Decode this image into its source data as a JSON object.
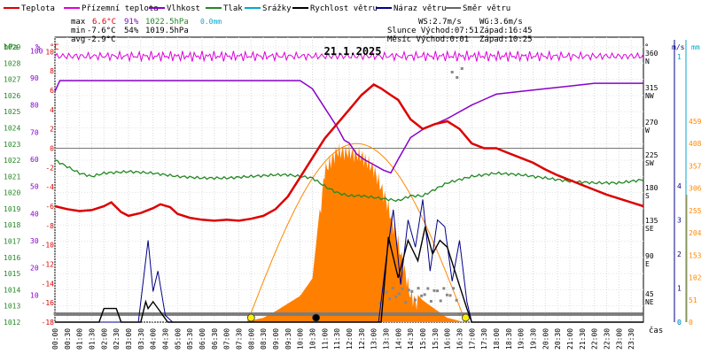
{
  "chart_data": {
    "type": "line",
    "title": "21.1.2025",
    "xlabel": "čas",
    "legend": [
      {
        "name": "Teplota",
        "color": "#dd0000"
      },
      {
        "name": "Přízemní teplota",
        "color": "#dd00dd"
      },
      {
        "name": "Vlhkost",
        "color": "#8800cc"
      },
      {
        "name": "Tlak",
        "color": "#228822"
      },
      {
        "name": "Srážky",
        "color": "#00aacc"
      },
      {
        "name": "Rychlost větru",
        "color": "#000000"
      },
      {
        "name": "Náraz větru",
        "color": "#000088"
      },
      {
        "name": "Směr větru",
        "color": "#666666"
      }
    ],
    "stats": {
      "max_label": "max",
      "max_temp": "6.6°C",
      "max_hum": "91%",
      "max_press": "1022.5hPa",
      "max_rain": "0.0mm",
      "min_label": "min",
      "min_temp": "-7.6°C",
      "min_hum": "54%",
      "min_press": "1019.5hPa",
      "avg_label": "avg",
      "avg_temp": "-2.9°C"
    },
    "wind_info": {
      "ws": "WS:2.7m/s",
      "wg": "WG:3.6m/s"
    },
    "sun_moon": {
      "sun": "Slunce Východ:07:51",
      "sun_set": "Západ:16:45",
      "moon": "Měsíc  Východ:0:01",
      "moon_set": "Západ:10:25"
    },
    "x_ticks": [
      "00:00",
      "00:30",
      "01:00",
      "01:30",
      "02:00",
      "02:30",
      "03:00",
      "03:30",
      "04:00",
      "04:30",
      "05:00",
      "05:30",
      "06:00",
      "06:30",
      "07:00",
      "07:30",
      "08:00",
      "08:30",
      "09:00",
      "09:30",
      "10:00",
      "10:30",
      "11:00",
      "11:30",
      "12:00",
      "12:30",
      "13:00",
      "13:30",
      "14:00",
      "14:30",
      "15:00",
      "15:30",
      "16:00",
      "16:30",
      "17:00",
      "17:30",
      "18:00",
      "18:30",
      "19:00",
      "19:30",
      "20:00",
      "20:30",
      "21:00",
      "21:30",
      "22:00",
      "22:30",
      "23:00",
      "23:30"
    ],
    "axes": {
      "hpa": {
        "unit": "hPa",
        "color": "#228822",
        "ticks": [
          "1012",
          "1013",
          "1014",
          "1015",
          "1016",
          "1017",
          "1018",
          "1019",
          "1020",
          "1021",
          "1022",
          "1023",
          "1024",
          "1025",
          "1026",
          "1027",
          "1028",
          "1029"
        ]
      },
      "pct": {
        "unit": "%",
        "color": "#8800cc",
        "ticks": [
          "10",
          "20",
          "30",
          "40",
          "50",
          "60",
          "70",
          "80",
          "90",
          "100"
        ]
      },
      "degc": {
        "unit": "°C",
        "color": "#dd0000",
        "ticks": [
          "-18",
          "-16",
          "-14",
          "-12",
          "-10",
          "-8",
          "-6",
          "-4",
          "-2",
          "0",
          "2",
          "4",
          "6",
          "8",
          "10"
        ]
      },
      "dir": {
        "unit": "°",
        "ticks": [
          "45 NE",
          "90 E",
          "135 SE",
          "180 S",
          "225 SW",
          "270 W",
          "315 NW",
          "360 N"
        ]
      },
      "ms": {
        "unit": "m/s",
        "color": "#000088",
        "ticks": [
          "0",
          "1",
          "2",
          "3",
          "4"
        ]
      },
      "mm": {
        "unit": "mm",
        "color": "#00aacc",
        "ticks": [
          "0",
          "1"
        ]
      },
      "rad": {
        "color": "#ff8800",
        "ticks": [
          "0",
          "51",
          "102",
          "153",
          "204",
          "255",
          "306",
          "357",
          "408",
          "459"
        ]
      }
    },
    "ylim_temp": [
      -18,
      11.5
    ],
    "temperature": {
      "x": [
        0,
        0.5,
        1,
        1.5,
        2,
        2.3,
        2.7,
        3,
        3.5,
        4,
        4.3,
        4.7,
        5,
        5.5,
        6,
        6.5,
        7,
        7.5,
        8,
        8.5,
        9,
        9.5,
        10,
        10.5,
        11,
        11.5,
        12,
        12.5,
        13,
        13.3,
        13.7,
        14,
        14.5,
        15,
        15.5,
        16,
        16.5,
        17,
        17.5,
        18,
        18.5,
        19,
        19.5,
        20,
        20.5,
        21,
        21.5,
        22,
        22.5,
        23,
        23.5,
        24
      ],
      "y": [
        -6.0,
        -6.3,
        -6.5,
        -6.4,
        -6.0,
        -5.6,
        -6.6,
        -7.0,
        -6.7,
        -6.2,
        -5.8,
        -6.1,
        -6.8,
        -7.2,
        -7.4,
        -7.5,
        -7.4,
        -7.5,
        -7.3,
        -7.0,
        -6.3,
        -5.0,
        -3.0,
        -1.0,
        1.0,
        2.5,
        4.0,
        5.5,
        6.6,
        6.2,
        5.5,
        5.0,
        3.0,
        2.0,
        2.5,
        2.8,
        2.0,
        0.5,
        0.0,
        0.0,
        -0.5,
        -1.0,
        -1.5,
        -2.2,
        -2.8,
        -3.3,
        -3.8,
        -4.3,
        -4.8,
        -5.2,
        -5.6,
        -6.0
      ]
    },
    "humidity": {
      "x": [
        0,
        0.2,
        0.6,
        1,
        2,
        3,
        4,
        5,
        6,
        7,
        8,
        9,
        10,
        10.5,
        11,
        11.5,
        11.8,
        12,
        12.3,
        12.6,
        13,
        13.4,
        13.7,
        14,
        14.5,
        15,
        16,
        17,
        17.5,
        18,
        19,
        20,
        21,
        22,
        23,
        24
      ],
      "y": [
        85,
        89,
        89,
        89,
        89,
        89,
        89,
        89,
        89,
        89,
        89,
        89,
        89,
        86,
        79,
        72,
        67,
        66,
        62,
        60,
        58,
        56,
        55,
        60,
        68,
        71,
        75,
        80,
        82,
        84,
        85,
        86,
        87,
        88,
        88,
        88
      ]
    },
    "ground_temp": {
      "base": 98,
      "amp": 2
    },
    "pressure": {
      "x": [
        0,
        0.5,
        1,
        1.5,
        2,
        3,
        4,
        5,
        6,
        7,
        8,
        9,
        9.5,
        10,
        10.5,
        11,
        11.5,
        12,
        12.5,
        13,
        14,
        14.5,
        15,
        16,
        17,
        18,
        19,
        20,
        21,
        22,
        23,
        24
      ],
      "y": [
        1022.0,
        1021.6,
        1021.2,
        1021.0,
        1021.2,
        1021.3,
        1021.2,
        1021.0,
        1020.9,
        1020.9,
        1021.0,
        1021.1,
        1021.1,
        1021.0,
        1020.9,
        1020.4,
        1020.0,
        1019.8,
        1019.8,
        1019.7,
        1019.5,
        1019.8,
        1019.8,
        1020.6,
        1021.0,
        1021.2,
        1021.1,
        1020.9,
        1020.7,
        1020.6,
        1020.6,
        1020.8
      ]
    },
    "sun_curve": {
      "rise": 7.85,
      "set": 16.75,
      "peak": 408
    },
    "radiation": {
      "x": [
        7.7,
        8.5,
        9,
        10,
        10.5,
        11,
        11.5,
        12,
        12.5,
        13,
        13.5,
        14,
        14.5,
        15,
        15.5,
        16,
        16.7
      ],
      "y": [
        0,
        10,
        25,
        60,
        100,
        365,
        410,
        408,
        400,
        370,
        300,
        200,
        80,
        50,
        30,
        10,
        0
      ]
    },
    "wind_speed": {
      "x": [
        0,
        1.8,
        2.0,
        2.5,
        2.7,
        3,
        3.5,
        3.7,
        3.8,
        4.0,
        4.3,
        4.6,
        5,
        13.3,
        13.6,
        14.0,
        14.4,
        14.8,
        15.1,
        15.4,
        15.7,
        16.0,
        16.4,
        16.8,
        17.0,
        24
      ],
      "y": [
        0,
        0,
        0.4,
        0.4,
        0,
        0,
        0,
        0.6,
        0.4,
        0.6,
        0.3,
        0,
        0,
        0,
        2.5,
        1.3,
        2.4,
        1.8,
        2.8,
        2.0,
        2.4,
        2.2,
        1.3,
        0.4,
        0,
        0
      ]
    },
    "wind_gust": {
      "x": [
        0,
        3.4,
        3.6,
        3.8,
        4.0,
        4.2,
        4.5,
        4.8,
        13.2,
        13.5,
        13.8,
        14.1,
        14.4,
        14.7,
        15.0,
        15.3,
        15.6,
        15.9,
        16.2,
        16.5,
        16.8,
        17.0,
        24
      ],
      "y": [
        0,
        0,
        1.2,
        2.4,
        0.9,
        1.5,
        0.2,
        0,
        0,
        1.8,
        3.3,
        1.1,
        3.0,
        2.2,
        3.6,
        1.5,
        3.0,
        2.8,
        1.2,
        2.4,
        0.6,
        0,
        0
      ]
    },
    "markers": [
      {
        "t": 8.0,
        "color": "#ffee00"
      },
      {
        "t": 10.65,
        "color": "#000000"
      },
      {
        "t": 16.75,
        "color": "#ffee00"
      }
    ]
  }
}
